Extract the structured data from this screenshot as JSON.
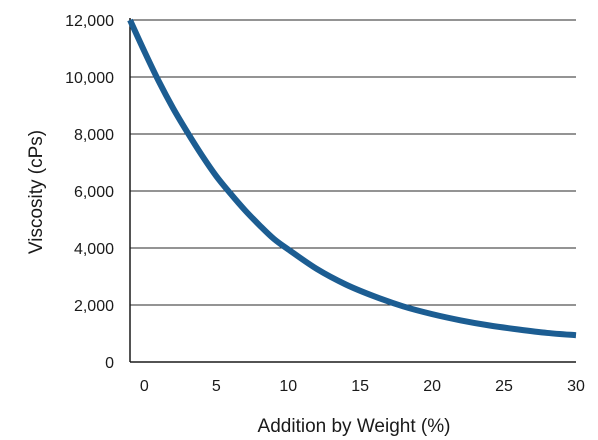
{
  "chart_data": {
    "type": "line",
    "xlabel": "Addition by Weight (%)",
    "ylabel": "Viscosity (cPs)",
    "xlim": [
      -1,
      30
    ],
    "ylim": [
      0,
      12000
    ],
    "x_ticks": [
      0,
      5,
      10,
      15,
      20,
      25,
      30
    ],
    "y_ticks": [
      0,
      2000,
      4000,
      6000,
      8000,
      10000,
      12000
    ],
    "y_tick_labels": [
      "0",
      "2,000",
      "4,000",
      "6,000",
      "8,000",
      "10,000",
      "12,000"
    ],
    "grid": "horizontal",
    "series": [
      {
        "color": "#1c5d92",
        "x": [
          -1,
          0,
          1,
          2,
          3,
          4,
          5,
          6,
          7,
          8,
          9,
          10,
          12,
          14,
          16,
          18,
          20,
          22,
          24,
          26,
          28,
          30
        ],
        "y": [
          12000,
          10900,
          9850,
          8900,
          8050,
          7250,
          6520,
          5900,
          5320,
          4800,
          4320,
          3950,
          3260,
          2720,
          2300,
          1950,
          1680,
          1460,
          1280,
          1140,
          1020,
          940
        ]
      }
    ]
  }
}
